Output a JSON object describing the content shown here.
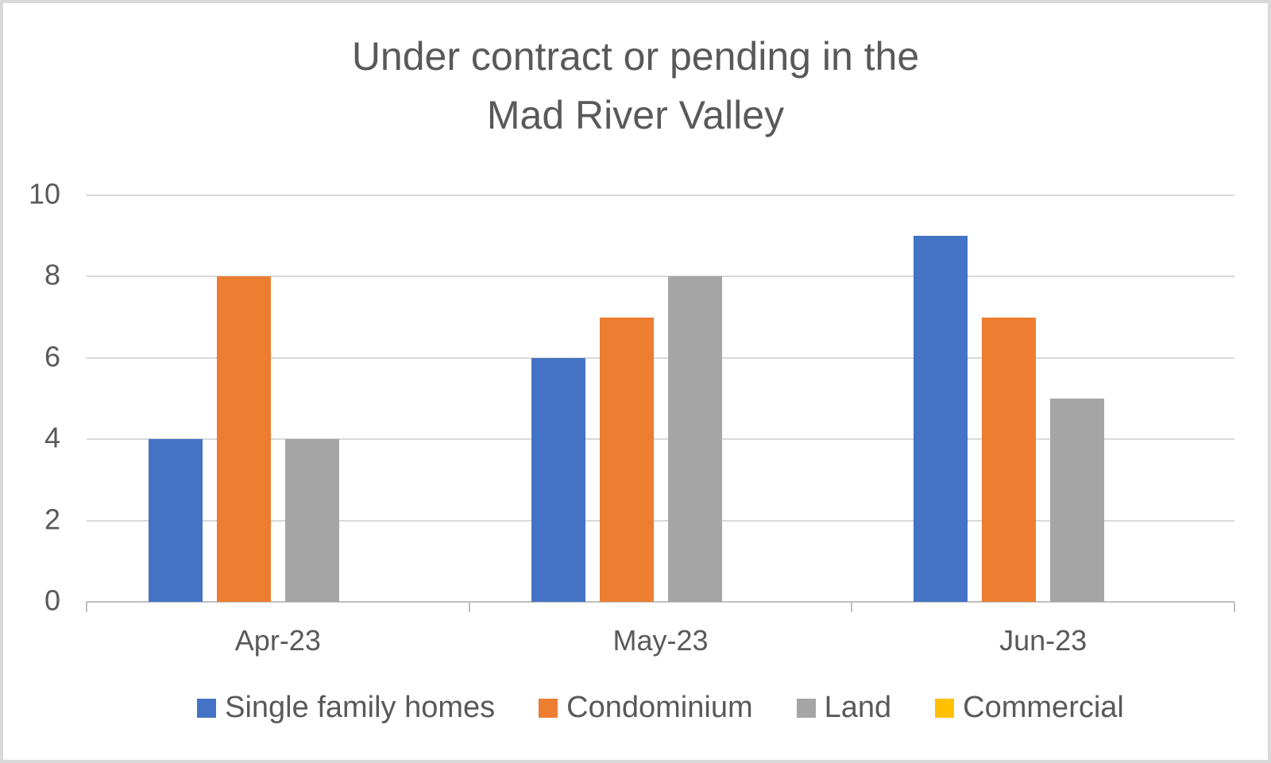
{
  "frame": {
    "background": "#ffffff",
    "border_color": "#d9d9d9"
  },
  "chart_data": {
    "type": "bar",
    "title": "Under contract or pending in the Mad River Valley",
    "title_lines": [
      "Under contract or pending in the",
      "Mad River Valley"
    ],
    "categories": [
      "Apr-23",
      "May-23",
      "Jun-23"
    ],
    "series": [
      {
        "name": "Single family homes",
        "color": "#4472C4",
        "values": [
          4,
          6,
          9
        ]
      },
      {
        "name": "Condominium",
        "color": "#ED7D31",
        "values": [
          8,
          7,
          7
        ]
      },
      {
        "name": "Land",
        "color": "#A5A5A5",
        "values": [
          4,
          8,
          5
        ]
      },
      {
        "name": "Commercial",
        "color": "#FFC000",
        "values": [
          0,
          0,
          0
        ]
      }
    ],
    "y_axis": {
      "min": 0,
      "max": 10,
      "tick_interval": 2,
      "tick_labels": [
        "0",
        "2",
        "4",
        "6",
        "8",
        "10"
      ]
    },
    "grid": true,
    "legend_position": "bottom",
    "theme": {
      "text_color": "#595959",
      "gridline_color": "#d9d9d9",
      "axis_line_color": "#bfbfbf"
    }
  }
}
